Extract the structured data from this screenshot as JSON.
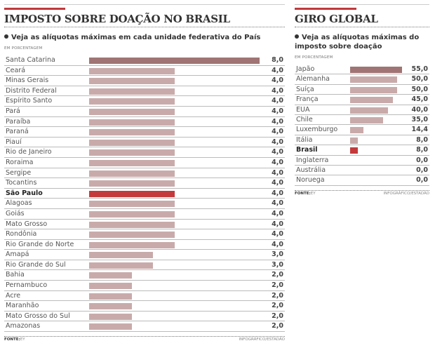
{
  "colors": {
    "top": "#a07474",
    "normal": "#c9aaaa",
    "highlight": "#c43a3c"
  },
  "chart_data": [
    {
      "type": "bar",
      "orientation": "horizontal",
      "title": "IMPOSTO SOBRE DOAÇÃO NO BRASIL",
      "subtitle": "Veja as alíquotas máximas em cada unidade federativa do País",
      "unit": "EM PORCENTAGEM",
      "source_label": "FONTE:",
      "source": "EY",
      "credit": "INFOGRÁFICO/ESTADÃO",
      "xlim": [
        0,
        8
      ],
      "categories": [
        "Santa Catarina",
        "Ceará",
        "Minas Gerais",
        "Distrito Federal",
        "Espírito Santo",
        "Pará",
        "Paraíba",
        "Paraná",
        "Piauí",
        "Rio de Janeiro",
        "Roraima",
        "Sergipe",
        "Tocantins",
        "São Paulo",
        "Alagoas",
        "Goiás",
        "Mato Grosso",
        "Rondônia",
        "Rio Grande do Norte",
        "Amapá",
        "Rio Grande do Sul",
        "Bahia",
        "Pernambuco",
        "Acre",
        "Maranhão",
        "Mato Grosso do Sul",
        "Amazonas"
      ],
      "values": [
        8,
        4,
        4,
        4,
        4,
        4,
        4,
        4,
        4,
        4,
        4,
        4,
        4,
        4,
        4,
        4,
        4,
        4,
        4,
        3,
        3,
        2,
        2,
        2,
        2,
        2,
        2
      ],
      "labels": [
        "8,0",
        "4,0",
        "4,0",
        "4,0",
        "4,0",
        "4,0",
        "4,0",
        "4,0",
        "4,0",
        "4,0",
        "4,0",
        "4,0",
        "4,0",
        "4,0",
        "4,0",
        "4,0",
        "4,0",
        "4,0",
        "4,0",
        "3,0",
        "3,0",
        "2,0",
        "2,0",
        "2,0",
        "2,0",
        "2,0",
        "2,0"
      ],
      "highlight": "São Paulo"
    },
    {
      "type": "bar",
      "orientation": "horizontal",
      "title": "GIRO GLOBAL",
      "subtitle": "Veja as alíquotas máximas do imposto sobre doação",
      "unit": "EM PORCENTAGEM",
      "source_label": "FONTE:",
      "source": "EY",
      "credit": "INFOGRÁFICO/ESTADÃO",
      "xlim": [
        0,
        55
      ],
      "categories": [
        "Japão",
        "Alemanha",
        "Suíça",
        "França",
        "EUA",
        "Chile",
        "Luxemburgo",
        "Itália",
        "Brasil",
        "Inglaterra",
        "Austrália",
        "Noruega"
      ],
      "values": [
        55,
        50,
        50,
        45,
        40,
        35,
        14.4,
        8,
        8,
        0,
        0,
        0
      ],
      "labels": [
        "55,0",
        "50,0",
        "50,0",
        "45,0",
        "40,0",
        "35,0",
        "14,4",
        "8,0",
        "8,0",
        "0,0",
        "0,0",
        "0,0"
      ],
      "highlight": "Brasil"
    }
  ]
}
